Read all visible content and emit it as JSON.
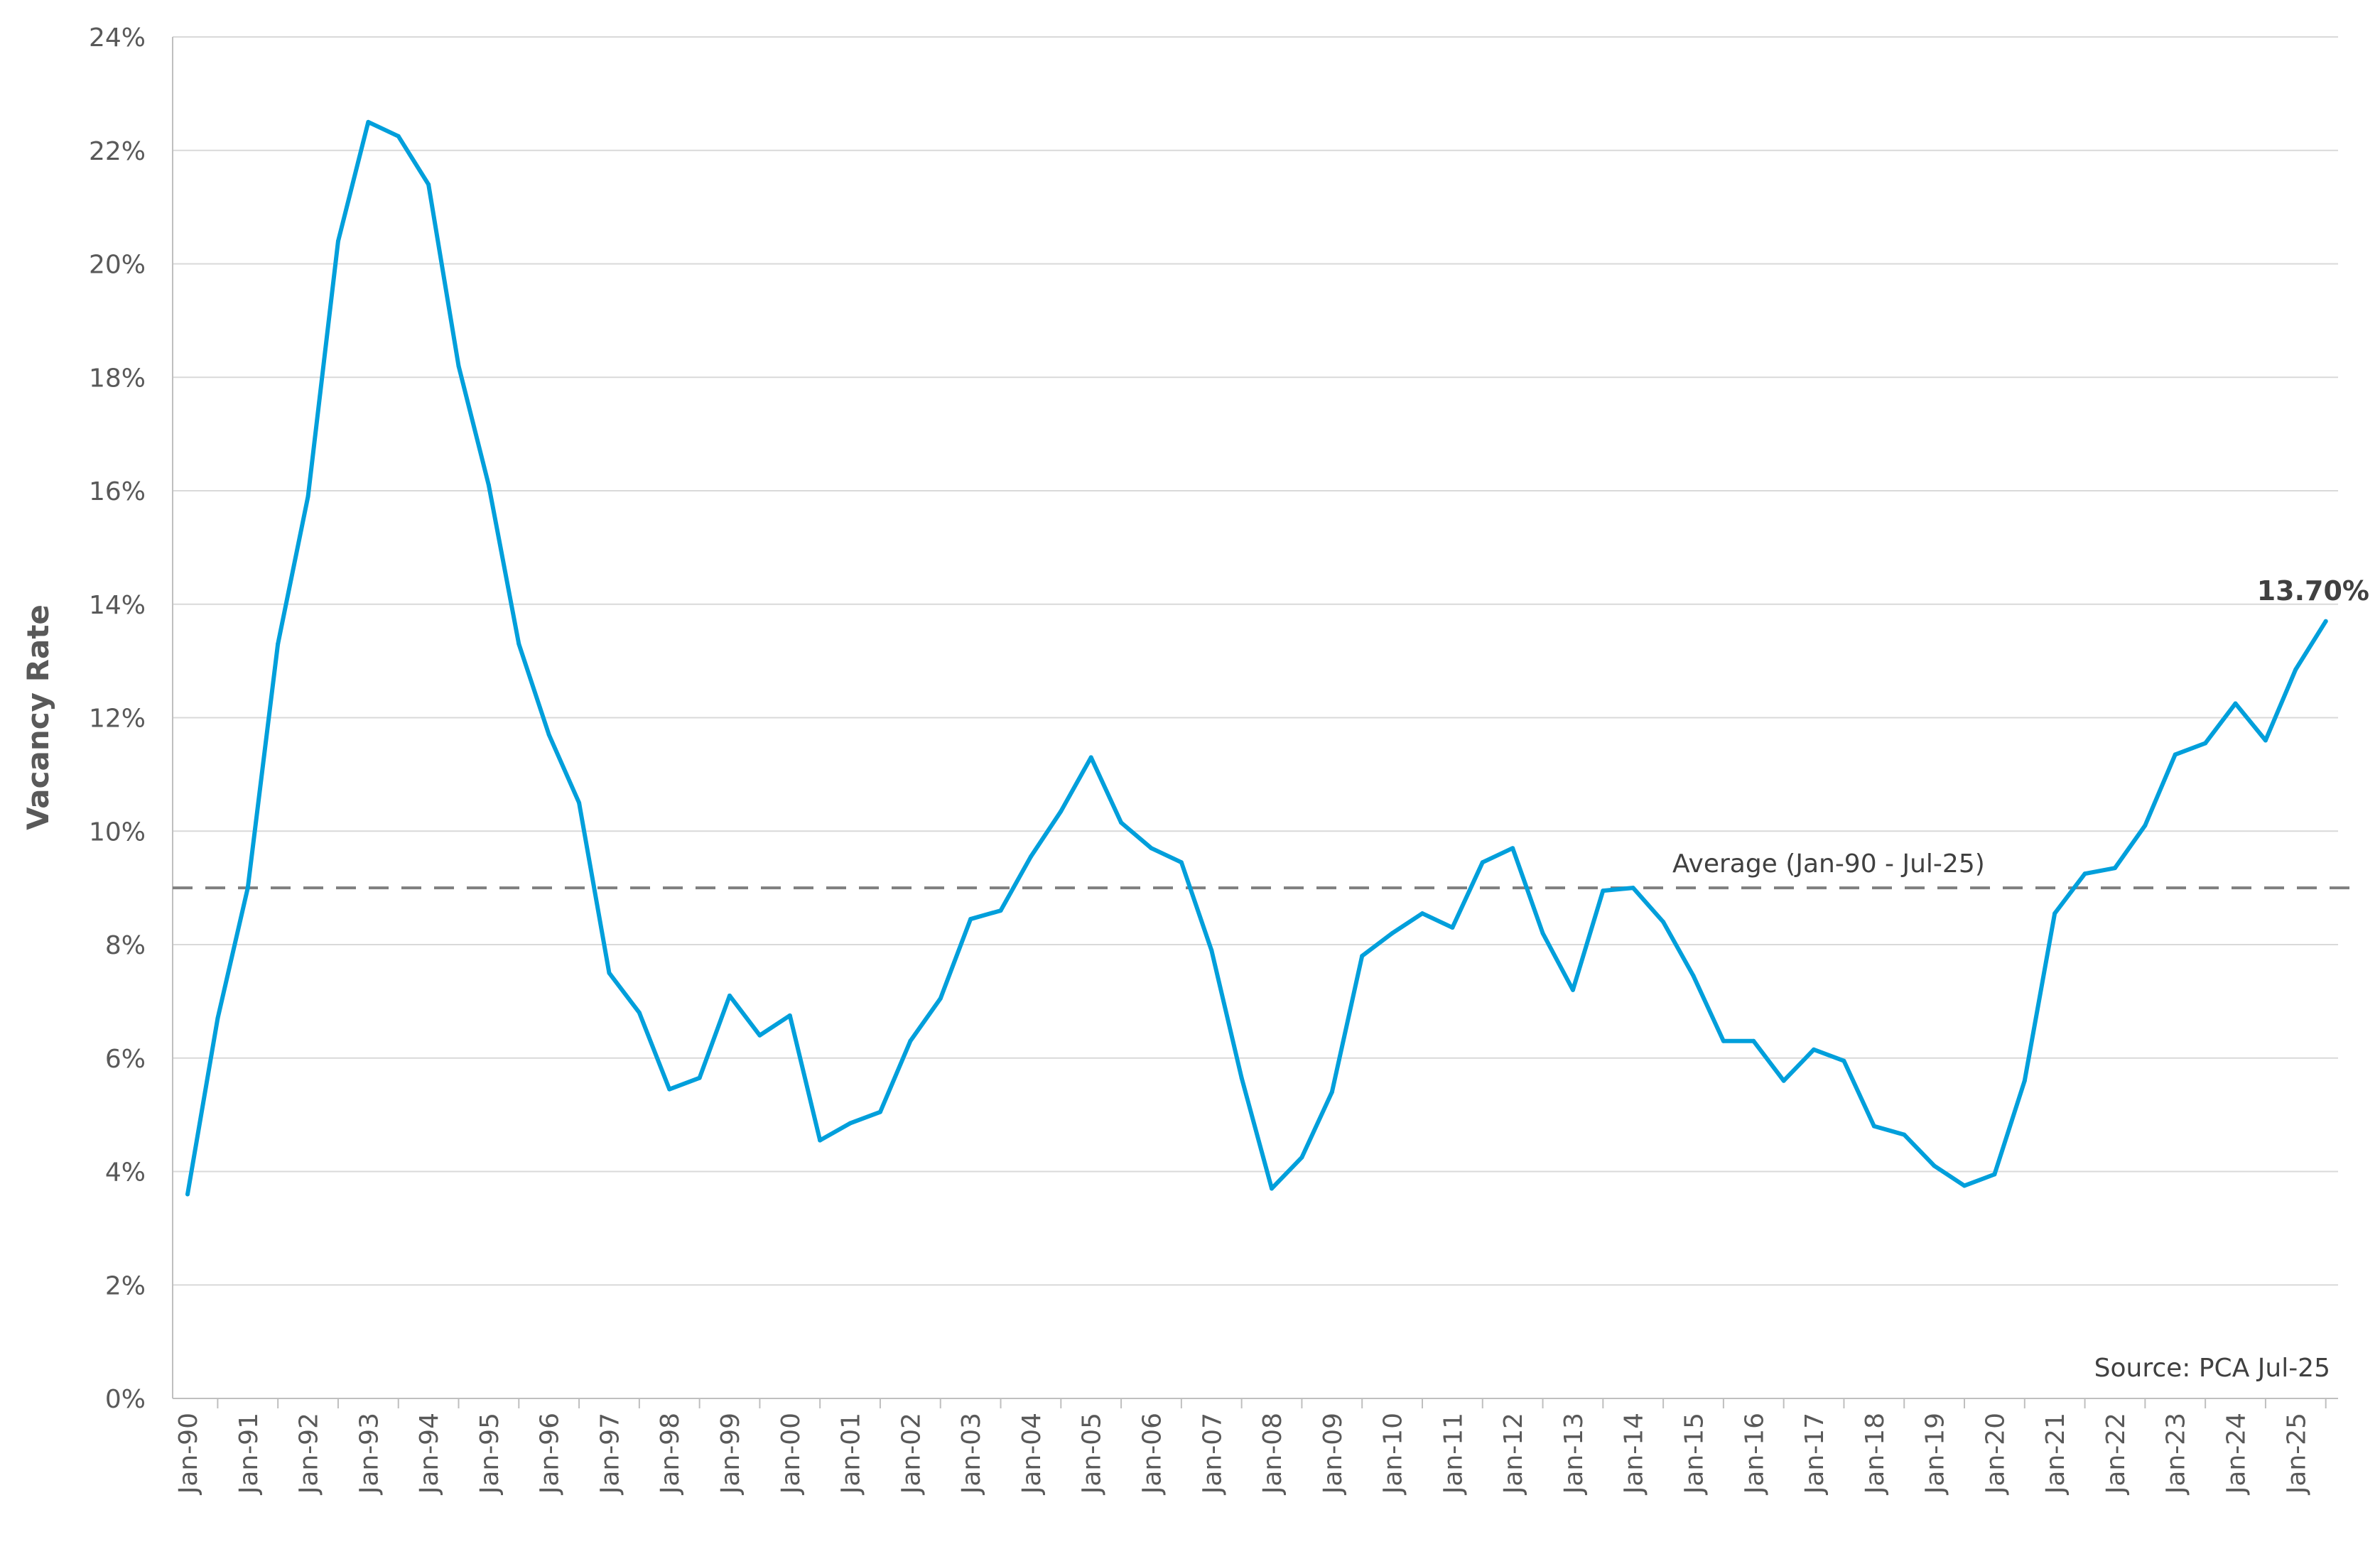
{
  "chart_data": {
    "type": "line",
    "ylabel": "Vacancy Rate",
    "xlabel": "",
    "ylim": [
      0,
      24
    ],
    "y_ticks": [
      "0%",
      "2%",
      "4%",
      "6%",
      "8%",
      "10%",
      "12%",
      "14%",
      "16%",
      "18%",
      "20%",
      "22%",
      "24%"
    ],
    "x_tick_labels": [
      "Jan-90",
      "Jan-91",
      "Jan-92",
      "Jan-93",
      "Jan-94",
      "Jan-95",
      "Jan-96",
      "Jan-97",
      "Jan-98",
      "Jan-99",
      "Jan-00",
      "Jan-01",
      "Jan-02",
      "Jan-03",
      "Jan-04",
      "Jan-05",
      "Jan-06",
      "Jan-07",
      "Jan-08",
      "Jan-09",
      "Jan-10",
      "Jan-11",
      "Jan-12",
      "Jan-13",
      "Jan-14",
      "Jan-15",
      "Jan-16",
      "Jan-17",
      "Jan-18",
      "Jan-19",
      "Jan-20",
      "Jan-21",
      "Jan-22",
      "Jan-23",
      "Jan-24",
      "Jan-25"
    ],
    "grid": true,
    "x_note": "semi-annual observations, Jan-90 to Jul-25",
    "series": [
      {
        "color": "#009FDB",
        "values": [
          3.6,
          6.7,
          9.0,
          13.3,
          15.9,
          20.4,
          22.5,
          22.25,
          21.4,
          18.2,
          16.1,
          13.3,
          11.7,
          10.5,
          7.5,
          6.8,
          5.45,
          5.65,
          7.1,
          6.4,
          6.75,
          4.55,
          4.85,
          5.05,
          6.3,
          7.05,
          8.45,
          8.6,
          9.55,
          10.35,
          11.3,
          10.15,
          9.7,
          9.45,
          7.9,
          5.65,
          3.7,
          4.25,
          5.4,
          7.8,
          8.2,
          8.55,
          8.3,
          9.45,
          9.7,
          8.2,
          7.2,
          8.95,
          9.0,
          8.4,
          7.45,
          6.3,
          6.3,
          5.6,
          6.15,
          5.95,
          4.8,
          4.65,
          4.1,
          3.75,
          3.95,
          5.6,
          8.55,
          9.25,
          9.35,
          10.1,
          11.35,
          11.55,
          12.25,
          11.6,
          12.85,
          13.7
        ]
      }
    ],
    "average": {
      "value": 9.0,
      "label": "Average (Jan-90 - Jul-25)",
      "color": "#7F7F7F"
    },
    "end_label": "13.70%",
    "source": "Source: PCA Jul-25"
  }
}
